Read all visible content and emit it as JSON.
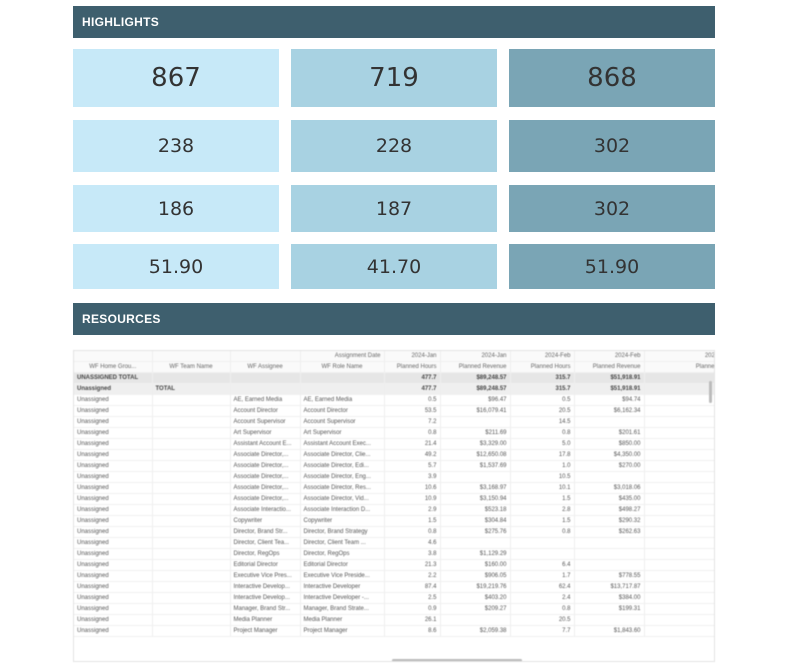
{
  "highlights": {
    "title": "HIGHLIGHTS",
    "rows": [
      [
        "867",
        "719",
        "868"
      ],
      [
        "238",
        "228",
        "302"
      ],
      [
        "186",
        "187",
        "302"
      ],
      [
        "51.90",
        "41.70",
        "51.90"
      ]
    ],
    "colors": [
      "#c7e9f8",
      "#a8d2e2",
      "#7aa5b5"
    ]
  },
  "resources": {
    "title": "RESOURCES",
    "header_top": [
      "",
      "",
      "",
      "Assignment Date",
      "2024-Jan",
      "2024-Jan",
      "2024-Feb",
      "2024-Feb",
      "2024-Mar"
    ],
    "header": [
      "WF Home Grou...",
      "WF Team Name",
      "WF Assignee",
      "WF Role Name",
      "Planned Hours",
      "Planned Revenue",
      "Planned Hours",
      "Planned Revenue",
      "Planned Hou"
    ],
    "total_rows": [
      [
        "UNASSIGNED TOTAL",
        "",
        "",
        "",
        "477.7",
        "$89,248.57",
        "315.7",
        "$51,918.91",
        "1"
      ],
      [
        "Unassigned",
        "TOTAL",
        "",
        "",
        "477.7",
        "$89,248.57",
        "315.7",
        "$51,918.91",
        "1"
      ]
    ],
    "rows": [
      [
        "Unassigned",
        "",
        "AE, Earned Media",
        "AE, Earned Media",
        "0.5",
        "$96.47",
        "0.5",
        "$94.74",
        ""
      ],
      [
        "Unassigned",
        "",
        "Account Director",
        "Account Director",
        "53.5",
        "$16,079.41",
        "20.5",
        "$6,162.34",
        ""
      ],
      [
        "Unassigned",
        "",
        "Account Supervisor",
        "Account Supervisor",
        "7.2",
        "",
        "14.5",
        "",
        ""
      ],
      [
        "Unassigned",
        "",
        "Art Supervisor",
        "Art Supervisor",
        "0.8",
        "$211.69",
        "0.8",
        "$201.61",
        ""
      ],
      [
        "Unassigned",
        "",
        "Assistant Account E...",
        "Assistant Account Exec...",
        "21.4",
        "$3,329.00",
        "5.0",
        "$850.00",
        ""
      ],
      [
        "Unassigned",
        "",
        "Associate Director,...",
        "Associate Director, Clie...",
        "49.2",
        "$12,650.08",
        "17.8",
        "$4,350.00",
        ""
      ],
      [
        "Unassigned",
        "",
        "Associate Director,...",
        "Associate Director, Edi...",
        "5.7",
        "$1,537.69",
        "1.0",
        "$270.00",
        ""
      ],
      [
        "Unassigned",
        "",
        "Associate Director,...",
        "Associate Director, Eng...",
        "3.9",
        "",
        "10.5",
        "",
        ""
      ],
      [
        "Unassigned",
        "",
        "Associate Director,...",
        "Associate Director, Res...",
        "10.6",
        "$3,168.97",
        "10.1",
        "$3,018.06",
        ""
      ],
      [
        "Unassigned",
        "",
        "Associate Director,...",
        "Associate Director, Vid...",
        "10.9",
        "$3,150.94",
        "1.5",
        "$435.00",
        ""
      ],
      [
        "Unassigned",
        "",
        "Associate Interactio...",
        "Associate Interaction D...",
        "2.9",
        "$523.18",
        "2.8",
        "$498.27",
        ""
      ],
      [
        "Unassigned",
        "",
        "Copywriter",
        "Copywriter",
        "1.5",
        "$304.84",
        "1.5",
        "$290.32",
        ""
      ],
      [
        "Unassigned",
        "",
        "Director, Brand Str...",
        "Director, Brand Strategy",
        "0.8",
        "$275.76",
        "0.8",
        "$262.63",
        ""
      ],
      [
        "Unassigned",
        "",
        "Director, Client Tea...",
        "Director, Client Team ...",
        "4.6",
        "",
        "",
        "",
        ""
      ],
      [
        "Unassigned",
        "",
        "Director, RegOps",
        "Director, RegOps",
        "3.8",
        "$1,129.29",
        "",
        "",
        ""
      ],
      [
        "Unassigned",
        "",
        "Editorial Director",
        "Editorial Director",
        "21.3",
        "$160.00",
        "6.4",
        "",
        ""
      ],
      [
        "Unassigned",
        "",
        "Executive Vice Pres...",
        "Executive Vice Preside...",
        "2.2",
        "$906.05",
        "1.7",
        "$778.55",
        ""
      ],
      [
        "Unassigned",
        "",
        "Interactive Develop...",
        "Interactive Developer",
        "87.4",
        "$19,219.76",
        "62.4",
        "$13,717.87",
        ""
      ],
      [
        "Unassigned",
        "",
        "Interactive Develop...",
        "Interactive Developer -...",
        "2.5",
        "$403.20",
        "2.4",
        "$384.00",
        ""
      ],
      [
        "Unassigned",
        "",
        "Manager, Brand Str...",
        "Manager, Brand Strate...",
        "0.9",
        "$209.27",
        "0.8",
        "$199.31",
        ""
      ],
      [
        "Unassigned",
        "",
        "Media Planner",
        "Media Planner",
        "26.1",
        "",
        "20.5",
        "",
        ""
      ],
      [
        "Unassigned",
        "",
        "Project Manager",
        "Project Manager",
        "8.6",
        "$2,059.38",
        "7.7",
        "$1,843.60",
        ""
      ]
    ]
  }
}
